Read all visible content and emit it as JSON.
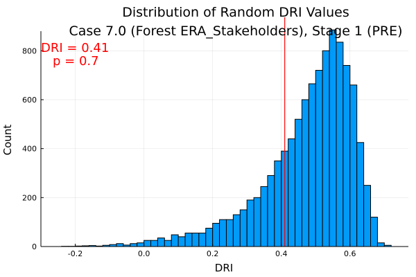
{
  "chart_data": {
    "type": "bar",
    "title_lines": [
      "Distribution of Random DRI Values",
      "Case 7.0 (Forest ERA_Stakeholders), Stage 1 (PRE)"
    ],
    "xlabel": "DRI",
    "ylabel": "Count",
    "xlim": [
      -0.3,
      0.77
    ],
    "ylim": [
      0,
      880
    ],
    "xticks": [
      -0.2,
      0.0,
      0.2,
      0.4,
      0.6
    ],
    "xtick_labels": [
      "-0.2",
      "0.0",
      "0.2",
      "0.4",
      "0.6"
    ],
    "yticks": [
      0,
      200,
      400,
      600,
      800
    ],
    "ytick_labels": [
      "0",
      "200",
      "400",
      "600",
      "800"
    ],
    "grid": true,
    "legend": "none",
    "bar_color": "#009af9",
    "bin_width": 0.02,
    "bins_start": [
      -0.24,
      -0.22,
      -0.2,
      -0.18,
      -0.16,
      -0.14,
      -0.12,
      -0.1,
      -0.08,
      -0.06,
      -0.04,
      -0.02,
      0.0,
      0.02,
      0.04,
      0.06,
      0.08,
      0.1,
      0.12,
      0.14,
      0.16,
      0.18,
      0.2,
      0.22,
      0.24,
      0.26,
      0.28,
      0.3,
      0.32,
      0.34,
      0.36,
      0.38,
      0.4,
      0.42,
      0.44,
      0.46,
      0.48,
      0.5,
      0.52,
      0.54,
      0.56,
      0.58,
      0.6,
      0.62,
      0.64,
      0.66,
      0.68,
      0.7
    ],
    "counts": [
      1,
      1,
      2,
      3,
      4,
      2,
      5,
      8,
      12,
      6,
      12,
      15,
      25,
      25,
      35,
      25,
      48,
      40,
      55,
      55,
      55,
      75,
      95,
      110,
      110,
      130,
      150,
      190,
      200,
      245,
      290,
      350,
      390,
      440,
      520,
      600,
      665,
      720,
      800,
      885,
      835,
      740,
      660,
      425,
      250,
      120,
      15,
      5
    ],
    "reference_line": {
      "x": 0.41,
      "color": "#ff0000"
    },
    "annotations": [
      "DRI = 0.41",
      "p = 0.7"
    ]
  }
}
